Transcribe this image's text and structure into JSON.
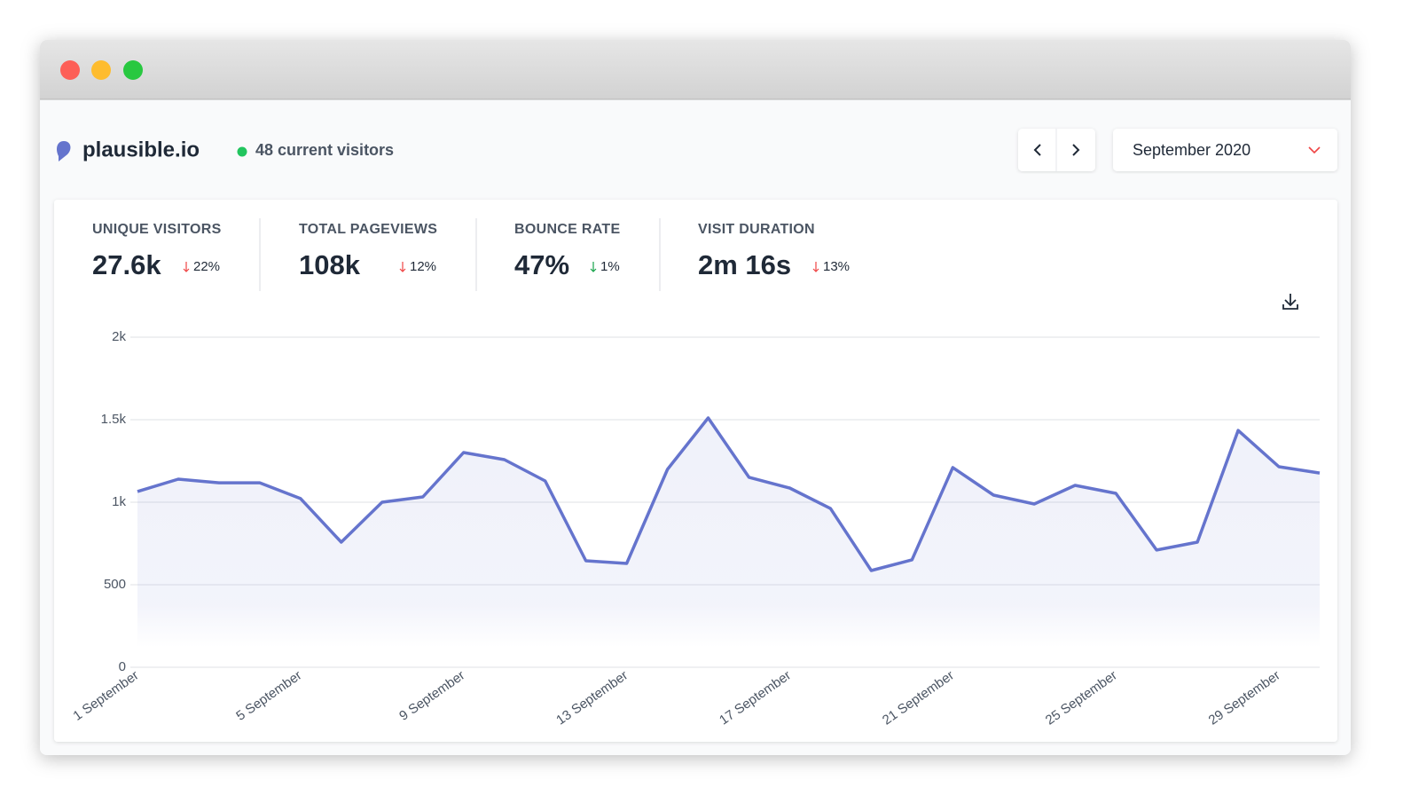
{
  "header": {
    "site": "plausible.io",
    "current_visitors": "48 current visitors",
    "period": "September 2020"
  },
  "stats": [
    {
      "label": "UNIQUE VISITORS",
      "value": "27.6k",
      "change": "22%"
    },
    {
      "label": "TOTAL PAGEVIEWS",
      "value": "108k",
      "change": "12%"
    },
    {
      "label": "BOUNCE RATE",
      "value": "47%",
      "change": "1%"
    },
    {
      "label": "VISIT DURATION",
      "value": "2m 16s",
      "change": "13%"
    }
  ],
  "chart_data": {
    "type": "line",
    "categories": [
      "1 September",
      null,
      null,
      null,
      "5 September",
      null,
      null,
      null,
      "9 September",
      null,
      null,
      null,
      "13 September",
      null,
      null,
      null,
      "17 September",
      null,
      null,
      null,
      "21 September",
      null,
      null,
      null,
      "25 September",
      null,
      null,
      null,
      "29 September",
      null
    ],
    "series": [
      {
        "color": "#6574cd",
        "values": [
          1065,
          1140,
          1118,
          1118,
          1022,
          758,
          1000,
          1032,
          1301,
          1258,
          1129,
          645,
          629,
          1199,
          1511,
          1151,
          1086,
          962,
          586,
          651,
          1210,
          1043,
          989,
          1102,
          1054,
          710,
          758,
          1435,
          1215,
          1177
        ]
      }
    ],
    "ylim": [
      0,
      2000
    ],
    "yticks": [
      0,
      500,
      {
        "value": 1000,
        "label": "1k"
      },
      {
        "value": 1500,
        "label": "1.5k"
      },
      {
        "value": 2000,
        "label": "2k"
      }
    ],
    "grid": true
  }
}
